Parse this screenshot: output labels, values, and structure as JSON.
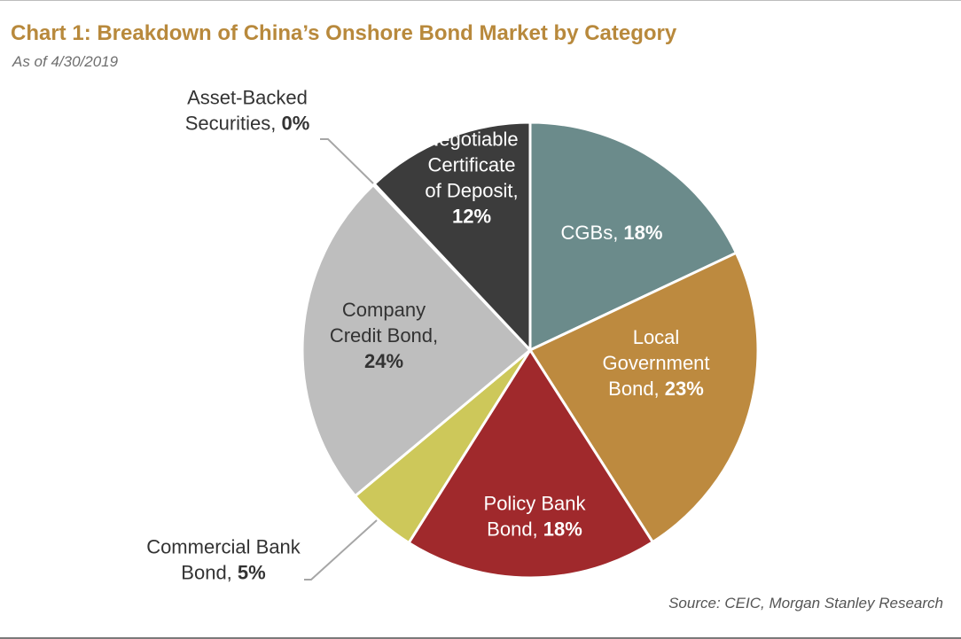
{
  "header": {
    "title": "Chart 1: Breakdown of China’s Onshore Bond Market by Category",
    "subtitle": "As of 4/30/2019"
  },
  "footer": {
    "source": "Source: CEIC, Morgan Stanley Research"
  },
  "chart_data": {
    "type": "pie",
    "title": "Chart 1: Breakdown of China’s Onshore Bond Market by Category",
    "subtitle": "As of 4/30/2019",
    "start_angle_deg": 0,
    "direction": "clockwise",
    "slices": [
      {
        "name": "CGBs",
        "value": 18,
        "value_label": "18%",
        "color": "#6b8b8b",
        "label_lines": [
          "CGBs, "
        ],
        "label_color": "#ffffff",
        "label_inside": true
      },
      {
        "name": "Local Government Bond",
        "value": 23,
        "value_label": "23%",
        "color": "#bd8a3f",
        "label_lines": [
          "Local",
          "Government",
          "Bond, "
        ],
        "label_color": "#ffffff",
        "label_inside": true
      },
      {
        "name": "Policy Bank Bond",
        "value": 18,
        "value_label": "18%",
        "color": "#a0292c",
        "label_lines": [
          "Policy Bank",
          "Bond, "
        ],
        "label_color": "#ffffff",
        "label_inside": true
      },
      {
        "name": "Commercial Bank Bond",
        "value": 5,
        "value_label": "5%",
        "color": "#cdc85a",
        "label_lines": [
          "Commercial Bank",
          "Bond, "
        ],
        "label_color": "#333333",
        "label_inside": false
      },
      {
        "name": "Company Credit Bond",
        "value": 24,
        "value_label": "24%",
        "color": "#bebebe",
        "label_lines": [
          "Company",
          "Credit Bond,",
          ""
        ],
        "label_color": "#333333",
        "label_inside": true
      },
      {
        "name": "Asset-Backed Securities",
        "value": 0.1,
        "value_label": "0%",
        "color": "#bebebe",
        "label_lines": [
          "Asset-Backed",
          "Securities, "
        ],
        "label_color": "#333333",
        "label_inside": false
      },
      {
        "name": "Negotiable Certificate of Deposit",
        "value": 12,
        "value_label": "12%",
        "color": "#3c3c3c",
        "label_lines": [
          "Negotiable",
          "Certificate",
          "of Deposit,",
          ""
        ],
        "label_color": "#ffffff",
        "label_inside": true
      }
    ]
  }
}
